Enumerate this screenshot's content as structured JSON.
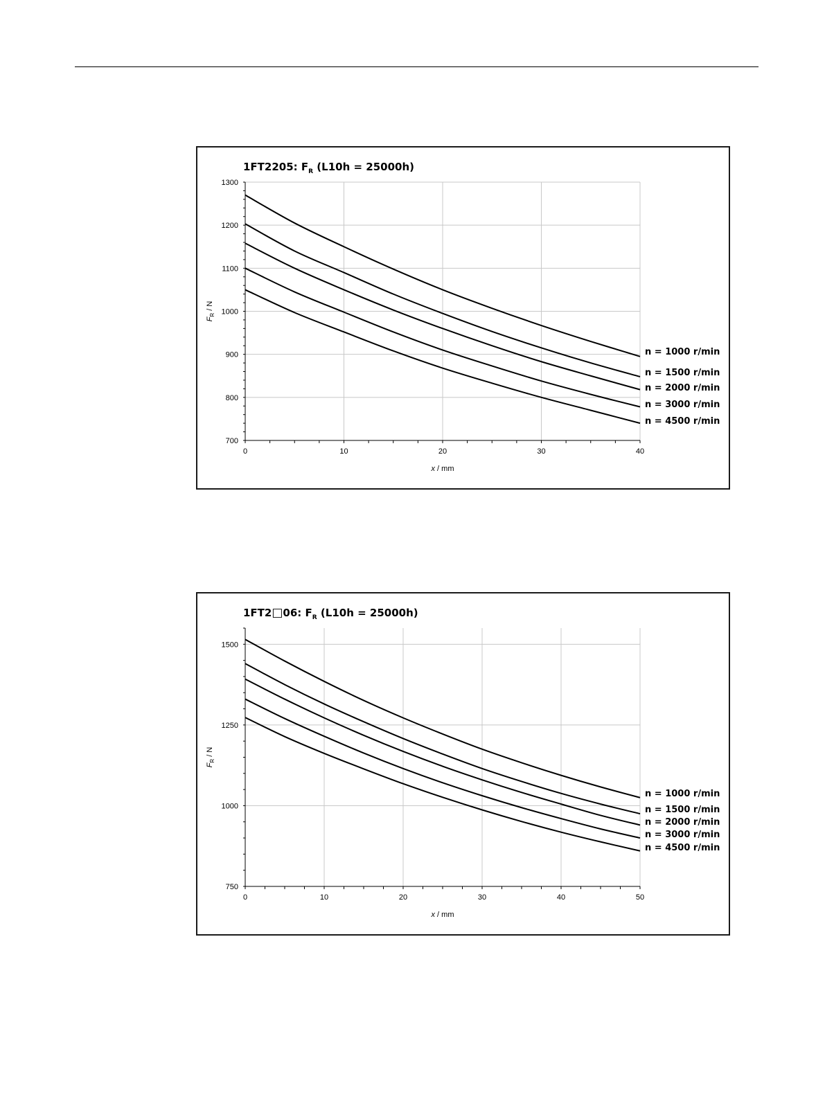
{
  "chart_data": [
    {
      "type": "line",
      "title": {
        "prefix": "1FT2205: F",
        "sub": "R",
        "suffix": " (L10h = 25000h)"
      },
      "xlabel": {
        "italic": "x",
        "rest": " / mm"
      },
      "ylabel": {
        "italic": "F",
        "sub": "R",
        "rest": " / N"
      },
      "xlim": [
        0,
        40
      ],
      "ylim": [
        700,
        1300
      ],
      "xticks": [
        0,
        10,
        20,
        30,
        40
      ],
      "yticks": [
        700,
        800,
        900,
        1000,
        1100,
        1200,
        1300
      ],
      "grid": true,
      "x": [
        0,
        5,
        10,
        15,
        20,
        25,
        30,
        35,
        40
      ],
      "series": [
        {
          "name": "n = 1000 r/min",
          "values": [
            1270,
            1205,
            1150,
            1098,
            1050,
            1007,
            967,
            930,
            895
          ]
        },
        {
          "name": "n = 1500 r/min",
          "values": [
            1203,
            1140,
            1090,
            1040,
            995,
            953,
            915,
            880,
            848
          ]
        },
        {
          "name": "n = 2000 r/min",
          "values": [
            1158,
            1100,
            1050,
            1003,
            960,
            920,
            883,
            850,
            818
          ]
        },
        {
          "name": "n = 3000 r/min",
          "values": [
            1100,
            1045,
            998,
            952,
            910,
            873,
            838,
            807,
            778
          ]
        },
        {
          "name": "n = 4500 r/min",
          "values": [
            1050,
            997,
            952,
            908,
            868,
            833,
            800,
            770,
            740
          ]
        }
      ]
    },
    {
      "type": "line",
      "title": {
        "prefix": "1FT2",
        "box": "□",
        "mid": "06: F",
        "sub": "R",
        "suffix": " (L10h = 25000h)"
      },
      "xlabel": {
        "italic": "x",
        "rest": " / mm"
      },
      "ylabel": {
        "italic": "F",
        "sub": "R",
        "rest": " / N"
      },
      "xlim": [
        0,
        50
      ],
      "ylim": [
        750,
        1550
      ],
      "xticks": [
        0,
        10,
        20,
        30,
        40,
        50
      ],
      "yticks": [
        750,
        1000,
        1250,
        1500
      ],
      "grid": true,
      "x": [
        0,
        5,
        10,
        15,
        20,
        25,
        30,
        35,
        40,
        45,
        50
      ],
      "series": [
        {
          "name": "n = 1000 r/min",
          "values": [
            1515,
            1448,
            1385,
            1326,
            1272,
            1222,
            1175,
            1133,
            1094,
            1058,
            1025
          ]
        },
        {
          "name": "n = 1500 r/min",
          "values": [
            1440,
            1375,
            1315,
            1260,
            1208,
            1160,
            1115,
            1075,
            1038,
            1005,
            975
          ]
        },
        {
          "name": "n = 2000 r/min",
          "values": [
            1392,
            1330,
            1272,
            1218,
            1168,
            1122,
            1080,
            1041,
            1005,
            970,
            940
          ]
        },
        {
          "name": "n = 3000 r/min",
          "values": [
            1330,
            1270,
            1215,
            1163,
            1115,
            1071,
            1031,
            994,
            960,
            928,
            900
          ]
        },
        {
          "name": "n = 4500 r/min",
          "values": [
            1273,
            1214,
            1162,
            1114,
            1068,
            1026,
            987,
            951,
            918,
            888,
            860
          ]
        }
      ]
    }
  ]
}
